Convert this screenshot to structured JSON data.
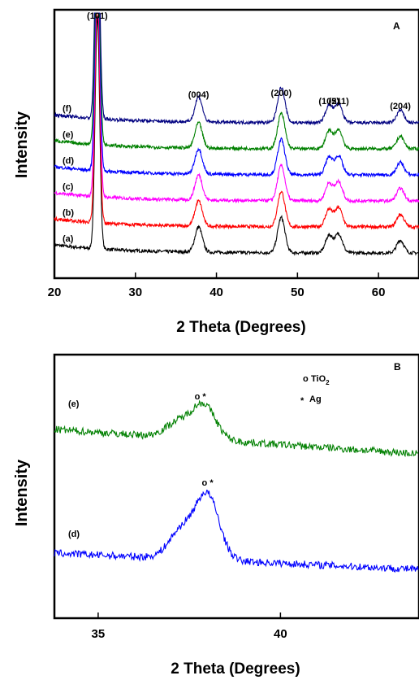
{
  "chart_data": [
    {
      "type": "line",
      "panel_label": "A",
      "xlabel": "2 Theta (Degrees)",
      "ylabel": "Intensity",
      "xlim": [
        20,
        65
      ],
      "xticks": [
        20,
        30,
        40,
        50,
        60
      ],
      "grid": false,
      "peak_labels": [
        {
          "text": "(101)",
          "x": 25.3
        },
        {
          "text": "(004)",
          "x": 37.8
        },
        {
          "text": "(200)",
          "x": 48.0
        },
        {
          "text": "(105)",
          "x": 53.9
        },
        {
          "text": "(211)",
          "x": 55.1
        },
        {
          "text": "(204)",
          "x": 62.7
        }
      ],
      "peaks": [
        {
          "x": 25.3,
          "relative_intensity": 1.0
        },
        {
          "x": 37.8,
          "relative_intensity": 0.2
        },
        {
          "x": 48.0,
          "relative_intensity": 0.28
        },
        {
          "x": 53.9,
          "relative_intensity": 0.14
        },
        {
          "x": 55.1,
          "relative_intensity": 0.15
        },
        {
          "x": 62.7,
          "relative_intensity": 0.1
        }
      ],
      "series": [
        {
          "name": "(a)",
          "color": "#000000",
          "baseline_offset": 0
        },
        {
          "name": "(b)",
          "color": "#ff0000",
          "baseline_offset": 1
        },
        {
          "name": "(c)",
          "color": "#ff00ff",
          "baseline_offset": 2
        },
        {
          "name": "(d)",
          "color": "#0000ff",
          "baseline_offset": 3
        },
        {
          "name": "(e)",
          "color": "#008000",
          "baseline_offset": 4
        },
        {
          "name": "(f)",
          "color": "#000080",
          "baseline_offset": 5
        }
      ]
    },
    {
      "type": "line",
      "panel_label": "B",
      "xlabel": "2 Theta (Degrees)",
      "ylabel": "Intensity",
      "xlim": [
        33.8,
        43.8
      ],
      "xticks": [
        35,
        40
      ],
      "grid": false,
      "legend": [
        {
          "marker": "o",
          "label": "TiO",
          "subscript": "2"
        },
        {
          "marker": "*",
          "label": "Ag",
          "subscript": ""
        }
      ],
      "legend_position": "top-right",
      "peak_markers": [
        {
          "series": "(e)",
          "x": 37.8,
          "symbols": "o *"
        },
        {
          "series": "(d)",
          "x": 38.0,
          "symbols": "o *"
        }
      ],
      "series": [
        {
          "name": "(e)",
          "color": "#008000",
          "peak_x": 37.9,
          "baseline_offset": 1
        },
        {
          "name": "(d)",
          "color": "#0000ff",
          "peak_x": 38.0,
          "baseline_offset": 0
        }
      ]
    }
  ]
}
